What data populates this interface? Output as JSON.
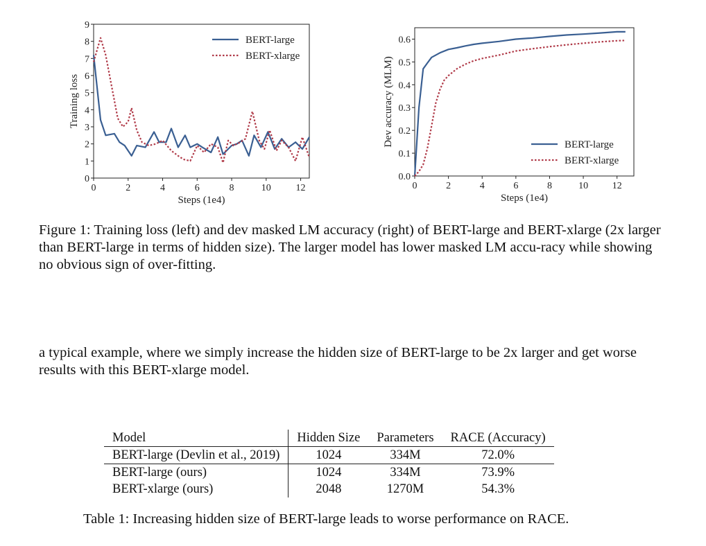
{
  "chart_data": [
    {
      "type": "line",
      "title": "",
      "xlabel": "Steps (1e4)",
      "ylabel": "Training loss",
      "xlim": [
        0,
        12.5
      ],
      "ylim": [
        0,
        9
      ],
      "xticks": [
        0,
        2,
        4,
        6,
        8,
        10,
        12
      ],
      "yticks": [
        0,
        1,
        2,
        3,
        4,
        5,
        6,
        7,
        8,
        9
      ],
      "legend_position": "top-right",
      "series": [
        {
          "name": "BERT-large",
          "style": "solid",
          "color": "#3a5f92",
          "x": [
            0,
            0.4,
            0.7,
            1.2,
            1.5,
            1.8,
            2.2,
            2.5,
            3.0,
            3.5,
            3.8,
            4.2,
            4.5,
            4.9,
            5.3,
            5.6,
            6.0,
            6.3,
            6.8,
            7.2,
            7.5,
            8.0,
            8.3,
            8.6,
            9.0,
            9.3,
            9.7,
            10.1,
            10.5,
            10.9,
            11.3,
            11.7,
            12.1,
            12.5
          ],
          "y": [
            7.2,
            3.4,
            2.5,
            2.6,
            2.1,
            1.9,
            1.3,
            1.9,
            1.8,
            2.7,
            2.1,
            2.1,
            2.9,
            1.8,
            2.5,
            1.8,
            2.0,
            1.8,
            1.5,
            2.4,
            1.4,
            1.9,
            2.0,
            2.2,
            1.3,
            2.5,
            1.8,
            2.7,
            1.7,
            2.3,
            1.8,
            2.1,
            1.7,
            2.4
          ]
        },
        {
          "name": "BERT-xlarge",
          "style": "dotted",
          "color": "#b03a48",
          "x": [
            0,
            0.2,
            0.4,
            0.7,
            1.0,
            1.4,
            1.7,
            2.0,
            2.2,
            2.5,
            2.8,
            3.2,
            3.6,
            4.0,
            4.5,
            4.9,
            5.2,
            5.6,
            6.0,
            6.4,
            6.8,
            7.2,
            7.5,
            7.8,
            8.1,
            8.5,
            8.8,
            9.2,
            9.6,
            9.9,
            10.2,
            10.6,
            10.9,
            11.3,
            11.7,
            12.1,
            12.5
          ],
          "y": [
            6.8,
            7.5,
            8.2,
            7.2,
            5.6,
            3.5,
            3.0,
            3.3,
            4.1,
            2.8,
            2.1,
            1.9,
            2.0,
            2.2,
            1.6,
            1.3,
            1.1,
            1.0,
            1.9,
            1.5,
            2.0,
            1.8,
            0.9,
            2.2,
            1.9,
            2.1,
            2.3,
            3.9,
            2.2,
            1.7,
            2.8,
            1.6,
            2.2,
            1.8,
            1.0,
            2.4,
            1.2
          ]
        }
      ]
    },
    {
      "type": "line",
      "title": "",
      "xlabel": "Steps (1e4)",
      "ylabel": "Dev accuracy (MLM)",
      "xlim": [
        0,
        13
      ],
      "ylim": [
        0,
        0.65
      ],
      "xticks": [
        0,
        2,
        4,
        6,
        8,
        10,
        12
      ],
      "yticks": [
        0.0,
        0.1,
        0.2,
        0.3,
        0.4,
        0.5,
        0.6
      ],
      "legend_position": "bottom-right",
      "series": [
        {
          "name": "BERT-large",
          "style": "solid",
          "color": "#3a5f92",
          "x": [
            0,
            0.25,
            0.5,
            0.75,
            1.0,
            1.5,
            2.0,
            2.5,
            3.0,
            3.5,
            4.0,
            5.0,
            6.0,
            7.0,
            8.0,
            9.0,
            10.0,
            11.0,
            12.0,
            12.5
          ],
          "y": [
            0.0,
            0.3,
            0.47,
            0.495,
            0.52,
            0.54,
            0.555,
            0.562,
            0.57,
            0.577,
            0.582,
            0.59,
            0.6,
            0.605,
            0.612,
            0.618,
            0.622,
            0.627,
            0.632,
            0.632
          ]
        },
        {
          "name": "BERT-xlarge",
          "style": "dotted",
          "color": "#b03a48",
          "x": [
            0,
            0.25,
            0.5,
            0.75,
            1.0,
            1.25,
            1.5,
            1.75,
            2.0,
            2.5,
            3.0,
            3.5,
            4.0,
            5.0,
            6.0,
            7.0,
            8.0,
            9.0,
            10.0,
            11.0,
            12.0,
            12.5
          ],
          "y": [
            0.0,
            0.02,
            0.05,
            0.12,
            0.22,
            0.32,
            0.38,
            0.42,
            0.44,
            0.47,
            0.49,
            0.505,
            0.515,
            0.53,
            0.548,
            0.558,
            0.567,
            0.575,
            0.582,
            0.588,
            0.593,
            0.594
          ]
        }
      ]
    }
  ],
  "figure_caption": "Figure 1: Training loss (left) and dev masked LM accuracy (right) of BERT-large and BERT-xlarge (2x larger than BERT-large in terms of hidden size). The larger model has lower masked LM accu-racy while showing no obvious sign of over-fitting.",
  "body_text": "a typical example, where we simply increase the hidden size of BERT-large to be 2x larger and get worse results with this BERT-xlarge model.",
  "table": {
    "headers": [
      "Model",
      "Hidden Size",
      "Parameters",
      "RACE (Accuracy)"
    ],
    "rows": [
      [
        "BERT-large (Devlin et al., 2019)",
        "1024",
        "334M",
        "72.0%"
      ],
      [
        "BERT-large (ours)",
        "1024",
        "334M",
        "73.9%"
      ],
      [
        "BERT-xlarge (ours)",
        "2048",
        "1270M",
        "54.3%"
      ]
    ]
  },
  "table_caption": "Table 1: Increasing hidden size of BERT-large leads to worse performance on RACE."
}
